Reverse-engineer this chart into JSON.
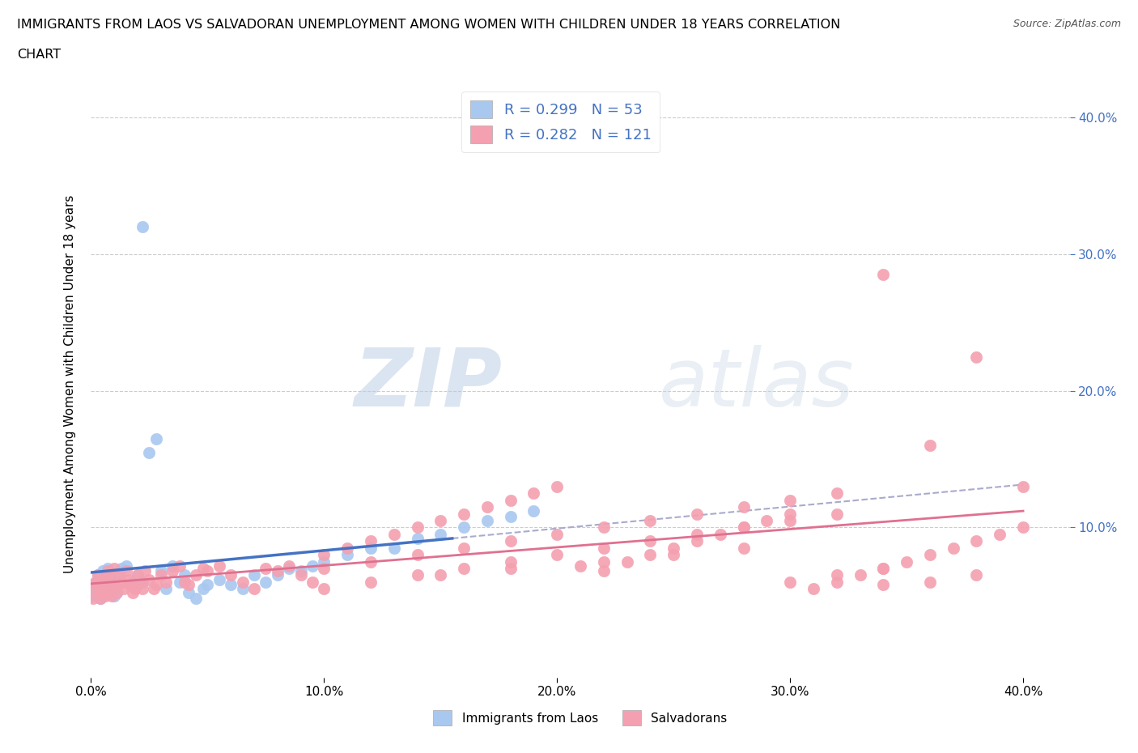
{
  "title_line1": "IMMIGRANTS FROM LAOS VS SALVADORAN UNEMPLOYMENT AMONG WOMEN WITH CHILDREN UNDER 18 YEARS CORRELATION",
  "title_line2": "CHART",
  "source": "Source: ZipAtlas.com",
  "watermark_zip": "ZIP",
  "watermark_atlas": "atlas",
  "xlabel": "",
  "ylabel": "Unemployment Among Women with Children Under 18 years",
  "xlim": [
    0.0,
    0.42
  ],
  "ylim": [
    -0.01,
    0.42
  ],
  "xticks": [
    0.0,
    0.1,
    0.2,
    0.3,
    0.4
  ],
  "yticks": [
    0.1,
    0.2,
    0.3,
    0.4
  ],
  "xtick_labels": [
    "0.0%",
    "10.0%",
    "20.0%",
    "30.0%",
    "40.0%"
  ],
  "ytick_labels": [
    "10.0%",
    "20.0%",
    "30.0%",
    "40.0%"
  ],
  "group1_color": "#a8c8f0",
  "group1_edge": "#6699cc",
  "group2_color": "#f4a0b0",
  "group2_edge": "#cc6688",
  "group1_name": "Immigrants from Laos",
  "group2_name": "Salvadorans",
  "group1_R": 0.299,
  "group1_N": 53,
  "group2_R": 0.282,
  "group2_N": 121,
  "legend_text_color": "#4472c4",
  "ytick_color": "#4472c4",
  "background_color": "#ffffff",
  "grid_color": "#cccccc",
  "blue_line_color": "#4472c4",
  "pink_line_color": "#e07090",
  "dashed_line_color": "#aaaacc",
  "blue_line_end_x": 0.155,
  "dashed_line_start_x": 0.155,
  "laos_x": [
    0.001,
    0.002,
    0.002,
    0.003,
    0.003,
    0.004,
    0.004,
    0.005,
    0.005,
    0.006,
    0.007,
    0.008,
    0.009,
    0.01,
    0.011,
    0.012,
    0.013,
    0.015,
    0.018,
    0.02,
    0.022,
    0.025,
    0.028,
    0.03,
    0.032,
    0.035,
    0.038,
    0.04,
    0.042,
    0.045,
    0.048,
    0.05,
    0.055,
    0.06,
    0.065,
    0.07,
    0.075,
    0.08,
    0.085,
    0.09,
    0.095,
    0.1,
    0.11,
    0.12,
    0.13,
    0.14,
    0.15,
    0.16,
    0.17,
    0.18,
    0.19,
    0.02,
    0.022
  ],
  "laos_y": [
    0.05,
    0.055,
    0.06,
    0.065,
    0.058,
    0.052,
    0.048,
    0.06,
    0.068,
    0.055,
    0.07,
    0.058,
    0.062,
    0.05,
    0.052,
    0.065,
    0.07,
    0.072,
    0.06,
    0.065,
    0.32,
    0.155,
    0.165,
    0.068,
    0.055,
    0.072,
    0.06,
    0.065,
    0.052,
    0.048,
    0.055,
    0.058,
    0.062,
    0.058,
    0.055,
    0.065,
    0.06,
    0.065,
    0.07,
    0.068,
    0.072,
    0.075,
    0.08,
    0.085,
    0.085,
    0.092,
    0.095,
    0.1,
    0.105,
    0.108,
    0.112,
    0.058,
    0.06
  ],
  "salv_x": [
    0.001,
    0.002,
    0.002,
    0.003,
    0.003,
    0.004,
    0.004,
    0.005,
    0.005,
    0.006,
    0.006,
    0.007,
    0.008,
    0.008,
    0.009,
    0.01,
    0.01,
    0.011,
    0.012,
    0.013,
    0.014,
    0.015,
    0.016,
    0.017,
    0.018,
    0.019,
    0.02,
    0.021,
    0.022,
    0.023,
    0.025,
    0.027,
    0.028,
    0.03,
    0.032,
    0.035,
    0.038,
    0.04,
    0.042,
    0.045,
    0.048,
    0.05,
    0.055,
    0.06,
    0.065,
    0.07,
    0.075,
    0.08,
    0.085,
    0.09,
    0.095,
    0.1,
    0.11,
    0.12,
    0.13,
    0.14,
    0.15,
    0.16,
    0.17,
    0.18,
    0.19,
    0.2,
    0.21,
    0.22,
    0.23,
    0.24,
    0.25,
    0.26,
    0.27,
    0.28,
    0.29,
    0.3,
    0.31,
    0.32,
    0.33,
    0.34,
    0.35,
    0.36,
    0.37,
    0.38,
    0.39,
    0.4,
    0.15,
    0.18,
    0.22,
    0.25,
    0.28,
    0.3,
    0.32,
    0.34,
    0.1,
    0.12,
    0.14,
    0.16,
    0.18,
    0.2,
    0.22,
    0.24,
    0.26,
    0.28,
    0.3,
    0.32,
    0.34,
    0.36,
    0.38,
    0.1,
    0.12,
    0.14,
    0.16,
    0.18,
    0.2,
    0.22,
    0.24,
    0.26,
    0.28,
    0.3,
    0.32,
    0.34,
    0.36,
    0.38,
    0.4
  ],
  "salv_y": [
    0.048,
    0.055,
    0.06,
    0.058,
    0.065,
    0.052,
    0.048,
    0.055,
    0.06,
    0.05,
    0.065,
    0.068,
    0.055,
    0.062,
    0.05,
    0.058,
    0.07,
    0.052,
    0.065,
    0.06,
    0.055,
    0.068,
    0.062,
    0.058,
    0.052,
    0.055,
    0.065,
    0.06,
    0.055,
    0.068,
    0.062,
    0.055,
    0.058,
    0.065,
    0.06,
    0.068,
    0.072,
    0.06,
    0.058,
    0.065,
    0.07,
    0.068,
    0.072,
    0.065,
    0.06,
    0.055,
    0.07,
    0.068,
    0.072,
    0.065,
    0.06,
    0.08,
    0.085,
    0.09,
    0.095,
    0.1,
    0.105,
    0.11,
    0.115,
    0.12,
    0.125,
    0.13,
    0.072,
    0.068,
    0.075,
    0.08,
    0.085,
    0.09,
    0.095,
    0.1,
    0.105,
    0.11,
    0.055,
    0.06,
    0.065,
    0.07,
    0.075,
    0.08,
    0.085,
    0.09,
    0.095,
    0.1,
    0.065,
    0.07,
    0.075,
    0.08,
    0.085,
    0.06,
    0.065,
    0.07,
    0.055,
    0.06,
    0.065,
    0.07,
    0.075,
    0.08,
    0.085,
    0.09,
    0.095,
    0.1,
    0.105,
    0.11,
    0.058,
    0.06,
    0.065,
    0.07,
    0.075,
    0.08,
    0.085,
    0.09,
    0.095,
    0.1,
    0.105,
    0.11,
    0.115,
    0.12,
    0.125,
    0.285,
    0.16,
    0.225,
    0.13
  ]
}
